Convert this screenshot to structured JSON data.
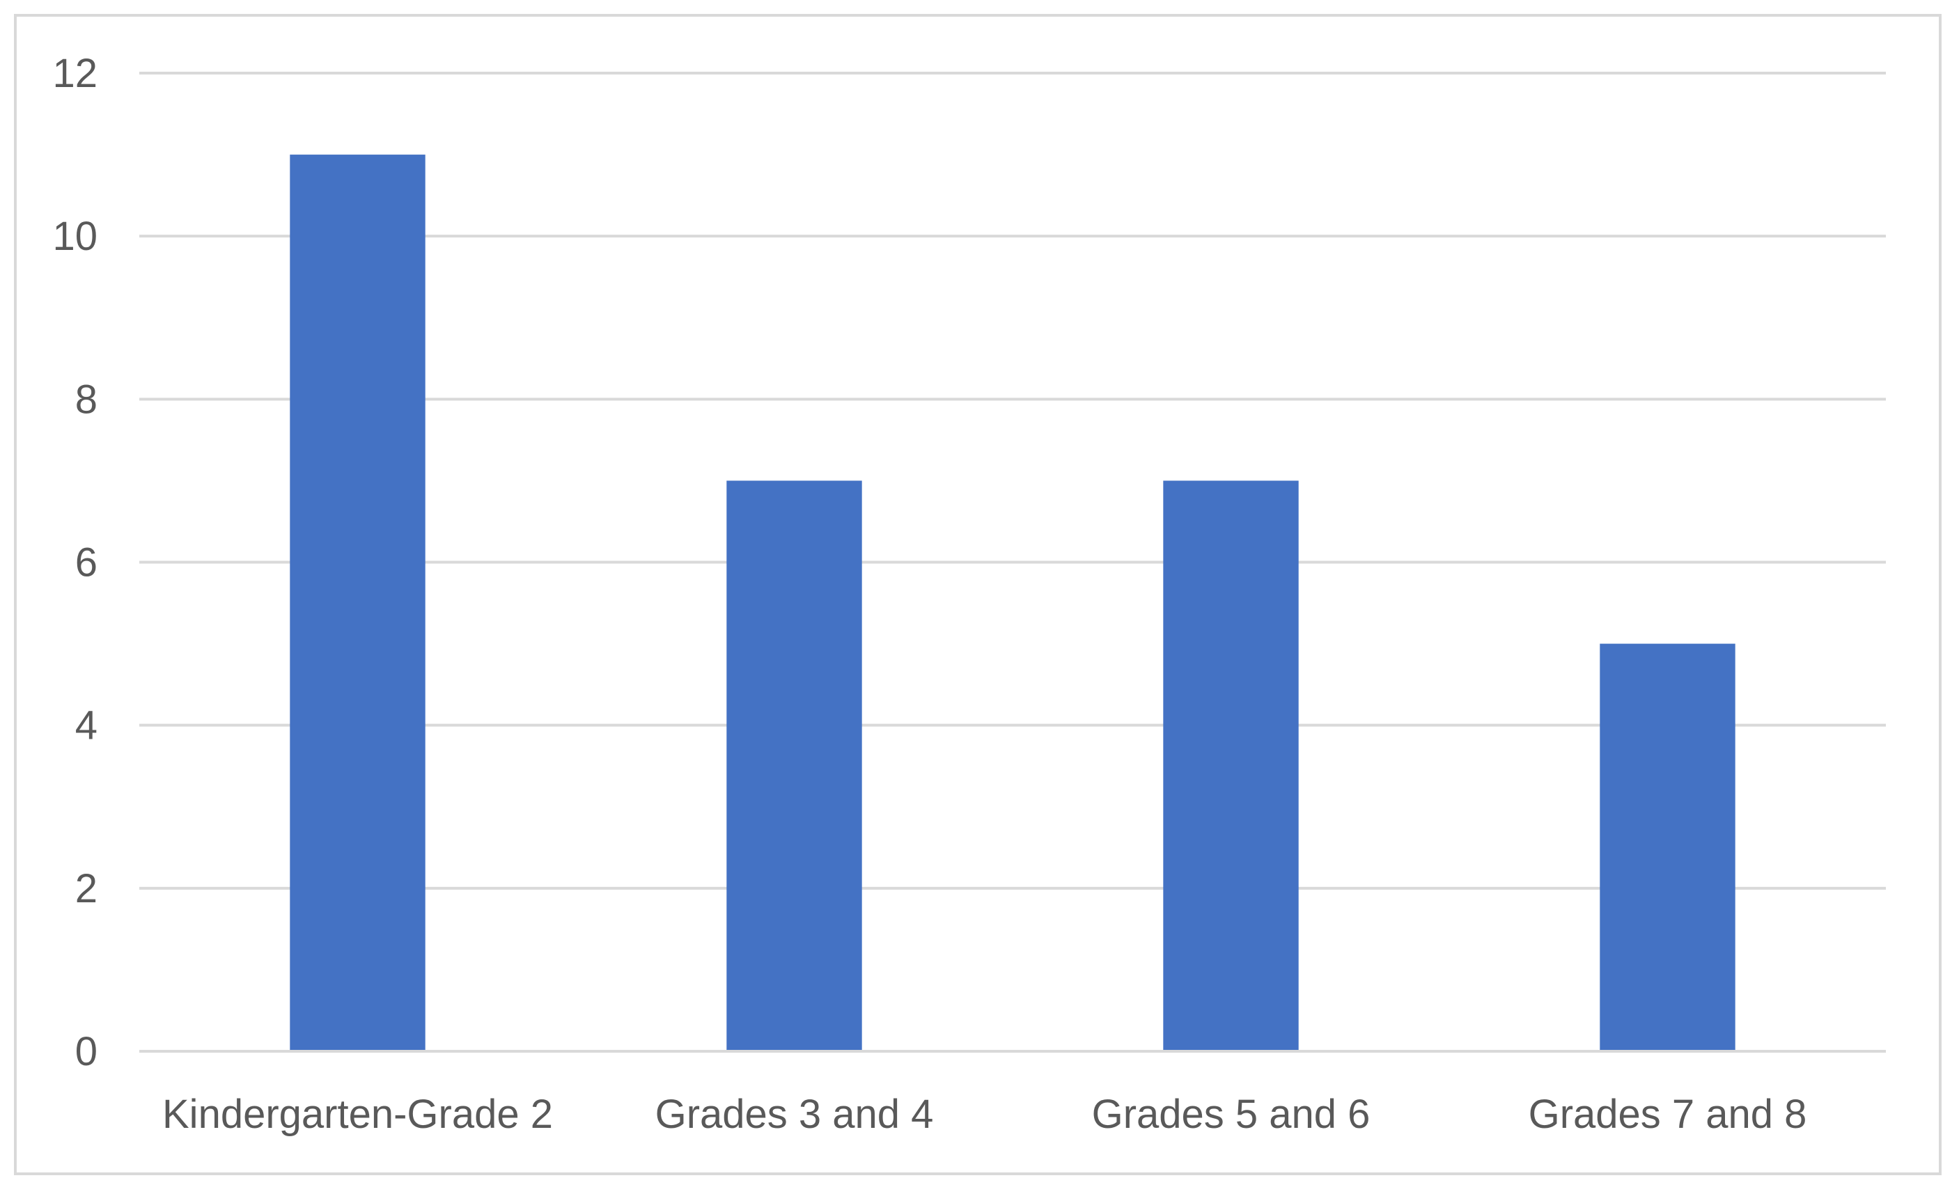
{
  "chart_data": {
    "type": "bar",
    "title": "",
    "xlabel": "",
    "ylabel": "",
    "categories": [
      "Kindergarten-Grade 2",
      "Grades 3 and 4",
      "Grades 5 and 6",
      "Grades 7 and 8"
    ],
    "values": [
      11,
      7,
      7,
      5
    ],
    "ylim": [
      0,
      12
    ],
    "yticks": [
      0,
      2,
      4,
      6,
      8,
      10,
      12
    ],
    "grid": true,
    "legend": "none",
    "bar_color": "#4472c4",
    "grid_color": "#d9d9d9",
    "text_color": "#595959"
  }
}
